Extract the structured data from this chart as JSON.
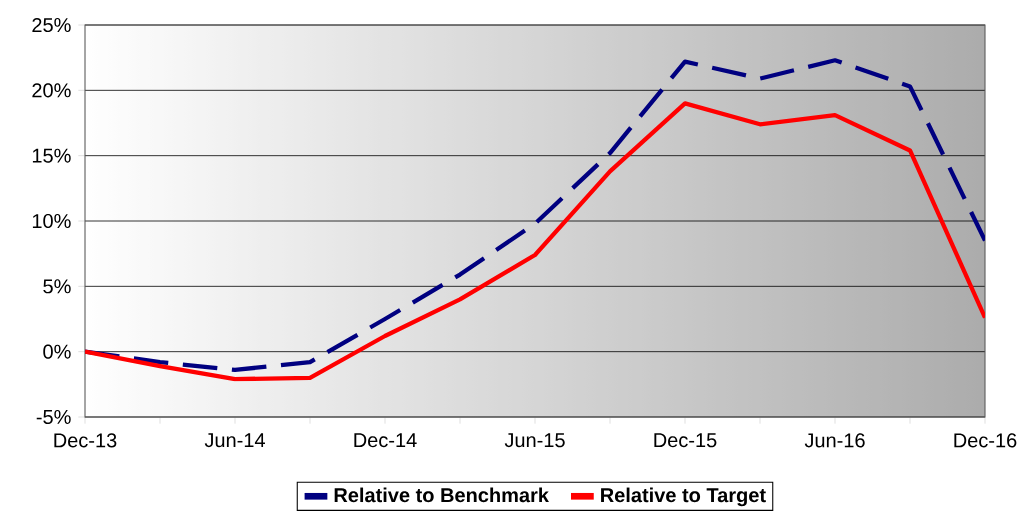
{
  "chart_data": {
    "type": "line",
    "x": [
      "2013-12",
      "2014-03",
      "2014-06",
      "2014-09",
      "2014-12",
      "2015-03",
      "2015-06",
      "2015-09",
      "2015-12",
      "2016-03",
      "2016-06",
      "2016-09",
      "2016-12"
    ],
    "series": [
      {
        "name": "Relative to Benchmark",
        "color": "#000080",
        "line_style": "dashed",
        "values": [
          0,
          -0.8,
          -1.4,
          -0.8,
          2.5,
          5.9,
          9.8,
          15.2,
          22.2,
          20.9,
          22.3,
          20.3,
          8.5
        ]
      },
      {
        "name": "Relative to Target",
        "color": "#ff0000",
        "line_style": "solid",
        "values": [
          0,
          -1.1,
          -2.1,
          -2.0,
          1.2,
          4.0,
          7.4,
          13.8,
          19.0,
          17.4,
          18.1,
          15.4,
          2.6
        ]
      }
    ],
    "xlim": [
      "2013-12",
      "2016-12"
    ],
    "xticks": [
      {
        "value": "2013-12",
        "label": "Dec-13"
      },
      {
        "value": "2014-03",
        "label": null
      },
      {
        "value": "2014-06",
        "label": "Jun-14"
      },
      {
        "value": "2014-09",
        "label": null
      },
      {
        "value": "2014-12",
        "label": "Dec-14"
      },
      {
        "value": "2015-03",
        "label": null
      },
      {
        "value": "2015-06",
        "label": "Jun-15"
      },
      {
        "value": "2015-09",
        "label": null
      },
      {
        "value": "2015-12",
        "label": "Dec-15"
      },
      {
        "value": "2016-03",
        "label": null
      },
      {
        "value": "2016-06",
        "label": "Jun-16"
      },
      {
        "value": "2016-09",
        "label": null
      },
      {
        "value": "2016-12",
        "label": "Dec-16"
      }
    ],
    "ylim": [
      -5,
      25
    ],
    "yticks": [
      {
        "value": -5,
        "label": "-5%"
      },
      {
        "value": 0,
        "label": "0%"
      },
      {
        "value": 5,
        "label": "5%"
      },
      {
        "value": 10,
        "label": "10%"
      },
      {
        "value": 15,
        "label": "15%"
      },
      {
        "value": 20,
        "label": "20%"
      },
      {
        "value": 25,
        "label": "25%"
      }
    ],
    "grid": "y",
    "legend": "bottom",
    "marker": "none"
  }
}
